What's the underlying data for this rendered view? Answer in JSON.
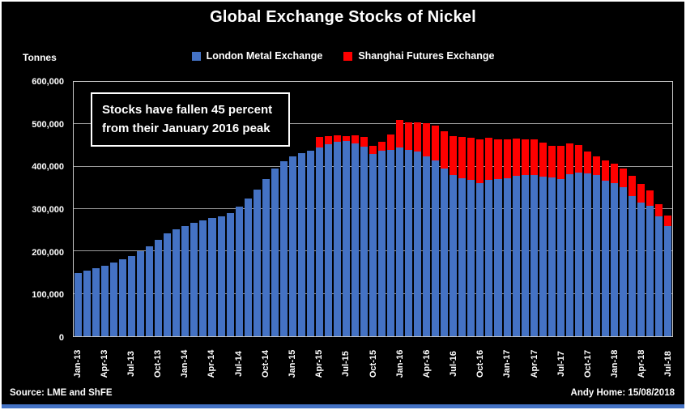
{
  "annotation": "Stocks have fallen 45 percent from their January 2016 peak",
  "footer": {
    "source": "Source: LME and ShFE",
    "credit": "Andy Home: 15/08/2018"
  },
  "colors": {
    "lme_blue": "#4472C4",
    "shfe_red": "#FF0000",
    "background": "#000000",
    "text": "#FFFFFF",
    "gridline": "#9A9A9A"
  },
  "chart_data": {
    "type": "bar",
    "stacked": true,
    "title": "Global Exchange Stocks of Nickel",
    "ylabel": "Tonnes",
    "xlabel": "",
    "ylim": [
      0,
      600000
    ],
    "ytick_step": 100000,
    "grid": true,
    "legend_position": "top",
    "y_tick_labels": [
      "0",
      "100,000",
      "200,000",
      "300,000",
      "400,000",
      "500,000",
      "600,000"
    ],
    "x_tick_every": 3,
    "x_tick_labels": [
      "Jan-13",
      "Apr-13",
      "Jul-13",
      "Oct-13",
      "Jan-14",
      "Apr-14",
      "Jul-14",
      "Oct-14",
      "Jan-15",
      "Apr-15",
      "Jul-15",
      "Oct-15",
      "Jan-16",
      "Apr-16",
      "Jul-16",
      "Oct-16",
      "Jan-17",
      "Apr-17",
      "Jul-17",
      "Oct-17",
      "Jan-18",
      "Apr-18",
      "Jul-18"
    ],
    "categories": [
      "Jan-13",
      "Feb-13",
      "Mar-13",
      "Apr-13",
      "May-13",
      "Jun-13",
      "Jul-13",
      "Aug-13",
      "Sep-13",
      "Oct-13",
      "Nov-13",
      "Dec-13",
      "Jan-14",
      "Feb-14",
      "Mar-14",
      "Apr-14",
      "May-14",
      "Jun-14",
      "Jul-14",
      "Aug-14",
      "Sep-14",
      "Oct-14",
      "Nov-14",
      "Dec-14",
      "Jan-15",
      "Feb-15",
      "Mar-15",
      "Apr-15",
      "May-15",
      "Jun-15",
      "Jul-15",
      "Aug-15",
      "Sep-15",
      "Oct-15",
      "Nov-15",
      "Dec-15",
      "Jan-16",
      "Feb-16",
      "Mar-16",
      "Apr-16",
      "May-16",
      "Jun-16",
      "Jul-16",
      "Aug-16",
      "Sep-16",
      "Oct-16",
      "Nov-16",
      "Dec-16",
      "Jan-17",
      "Feb-17",
      "Mar-17",
      "Apr-17",
      "May-17",
      "Jun-17",
      "Jul-17",
      "Aug-17",
      "Sep-17",
      "Oct-17",
      "Nov-17",
      "Dec-17",
      "Jan-18",
      "Feb-18",
      "Mar-18",
      "Apr-18",
      "May-18",
      "Jun-18",
      "Jul-18"
    ],
    "series": [
      {
        "name": "London Metal Exchange",
        "color": "#4472C4",
        "values": [
          150000,
          155000,
          161000,
          167000,
          174000,
          182000,
          190000,
          200000,
          212000,
          228000,
          242000,
          252000,
          260000,
          267000,
          273000,
          279000,
          283000,
          290000,
          305000,
          325000,
          345000,
          370000,
          395000,
          412000,
          425000,
          432000,
          438000,
          445000,
          452000,
          458000,
          460000,
          455000,
          448000,
          430000,
          438000,
          440000,
          445000,
          440000,
          435000,
          425000,
          415000,
          395000,
          380000,
          372000,
          368000,
          362000,
          368000,
          370000,
          372000,
          378000,
          380000,
          380000,
          376000,
          374000,
          370000,
          383000,
          386000,
          385000,
          380000,
          366000,
          362000,
          352000,
          330000,
          316000,
          308000,
          282000,
          260000
        ]
      },
      {
        "name": "Shanghai Futures Exchange",
        "color": "#FF0000",
        "values": [
          0,
          0,
          0,
          0,
          0,
          0,
          0,
          0,
          0,
          0,
          0,
          0,
          0,
          0,
          0,
          0,
          0,
          0,
          0,
          0,
          0,
          0,
          0,
          0,
          0,
          0,
          0,
          25000,
          20000,
          15000,
          12000,
          18000,
          22000,
          20000,
          20000,
          35000,
          65000,
          65000,
          70000,
          78000,
          82000,
          88000,
          92000,
          98000,
          100000,
          103000,
          100000,
          95000,
          92000,
          88000,
          85000,
          85000,
          80000,
          76000,
          80000,
          72000,
          65000,
          50000,
          45000,
          48000,
          46000,
          44000,
          48000,
          44000,
          36000,
          30000,
          25000
        ]
      }
    ]
  }
}
